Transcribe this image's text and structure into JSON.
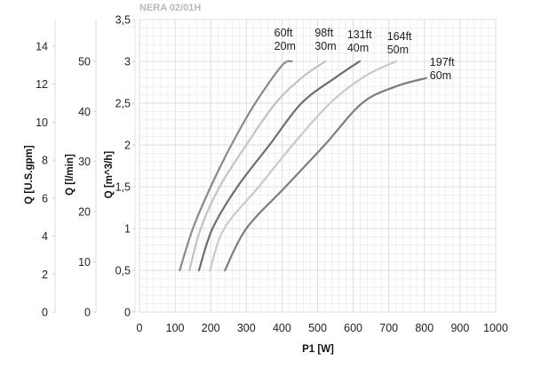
{
  "header": {
    "title": "NERA 02/01H"
  },
  "chart_data": {
    "type": "line",
    "xlabel": "P1 [W]",
    "xlim": [
      0,
      1000
    ],
    "x_ticks": [
      "0",
      "100",
      "200",
      "300",
      "400",
      "500",
      "600",
      "700",
      "800",
      "900",
      "1000"
    ],
    "grid": true,
    "y_axes": [
      {
        "label": "Q [U.S.gpm]",
        "ylim": [
          0,
          15.4
        ],
        "ticks": [
          "0",
          "2",
          "4",
          "6",
          "8",
          "10",
          "12",
          "14"
        ],
        "tick_values": [
          0,
          2,
          4,
          6,
          8,
          10,
          12,
          14
        ]
      },
      {
        "label": "Q [l/min]",
        "ylim": [
          0,
          58.3
        ],
        "ticks": [
          "0",
          "10",
          "20",
          "30",
          "40",
          "50"
        ],
        "tick_values": [
          0,
          10,
          20,
          30,
          40,
          50
        ]
      },
      {
        "label": "Q [m^3/h]",
        "ylim": [
          0,
          3.5
        ],
        "ticks": [
          "0",
          "0,5",
          "1",
          "1,5",
          "2",
          "2,5",
          "3",
          "3,5"
        ],
        "tick_values": [
          0,
          0.5,
          1,
          1.5,
          2,
          2.5,
          3,
          3.5
        ]
      }
    ],
    "series": [
      {
        "name_ft": "60ft",
        "name_m": "20m",
        "color": "#8a8a8a",
        "points": [
          [
            113,
            0.5
          ],
          [
            150,
            1.0
          ],
          [
            200,
            1.5
          ],
          [
            258,
            2.0
          ],
          [
            325,
            2.5
          ],
          [
            400,
            2.95
          ],
          [
            428,
            3.0
          ]
        ]
      },
      {
        "name_ft": "98ft",
        "name_m": "30m",
        "color": "#c2c2c2",
        "points": [
          [
            140,
            0.5
          ],
          [
            172,
            1.0
          ],
          [
            225,
            1.5
          ],
          [
            300,
            2.0
          ],
          [
            382,
            2.5
          ],
          [
            460,
            2.82
          ],
          [
            522,
            3.0
          ]
        ]
      },
      {
        "name_ft": "131ft",
        "name_m": "40m",
        "color": "#6e6e6e",
        "points": [
          [
            167,
            0.5
          ],
          [
            205,
            1.0
          ],
          [
            275,
            1.5
          ],
          [
            365,
            2.0
          ],
          [
            455,
            2.5
          ],
          [
            555,
            2.82
          ],
          [
            618,
            3.0
          ]
        ]
      },
      {
        "name_ft": "164ft",
        "name_m": "50m",
        "color": "#c9c9c9",
        "points": [
          [
            198,
            0.5
          ],
          [
            238,
            1.0
          ],
          [
            335,
            1.5
          ],
          [
            430,
            2.0
          ],
          [
            535,
            2.5
          ],
          [
            632,
            2.82
          ],
          [
            720,
            3.0
          ]
        ]
      },
      {
        "name_ft": "197ft",
        "name_m": "60m",
        "color": "#7d7d7d",
        "points": [
          [
            240,
            0.5
          ],
          [
            300,
            1.0
          ],
          [
            410,
            1.5
          ],
          [
            520,
            2.0
          ],
          [
            625,
            2.5
          ],
          [
            720,
            2.7
          ],
          [
            805,
            2.8
          ]
        ]
      }
    ]
  }
}
